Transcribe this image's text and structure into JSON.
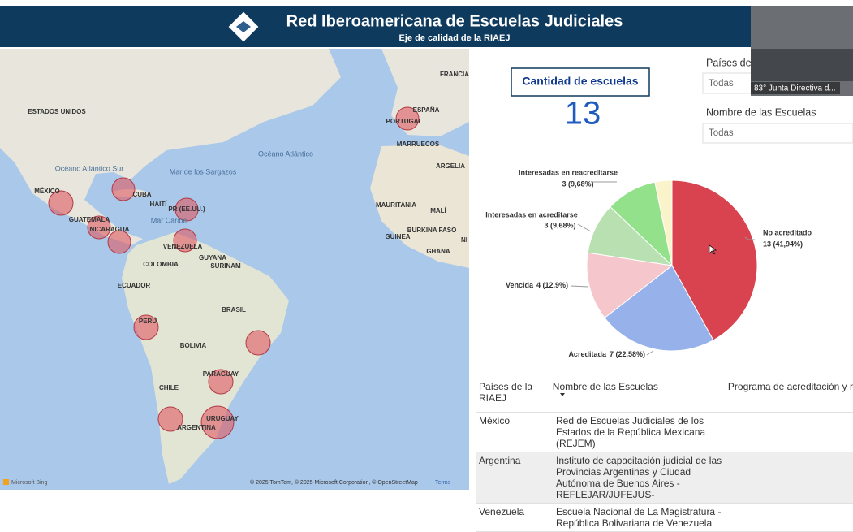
{
  "header": {
    "title": "Red Iberoamericana de Escuelas Judiciales",
    "subtitle": "Eje de calidad de la RIAEJ"
  },
  "map": {
    "labels": [
      "FRANCIA",
      "ESTADOS UNIDOS",
      "ESPAÑA",
      "PORTUGAL",
      "Océano Atlántico Sur",
      "Mar de los Sargazos",
      "Océano Atlántico",
      "MARRUECOS",
      "ARGELIA",
      "MÉXICO",
      "CUBA",
      "HAITÍ",
      "PR (EE.UU.)",
      "Mar Caribe",
      "GUATEMALA",
      "NICARAGUA",
      "VENEZUELA",
      "GUYANA",
      "SURINAM",
      "COLOMBIA",
      "ECUADOR",
      "MAURITANIA",
      "MALÍ",
      "BURKINA FASO",
      "GUINEA",
      "GHANA",
      "NI",
      "BRASIL",
      "PERÚ",
      "BOLIVIA",
      "PARAGUAY",
      "CHILE",
      "URUGUAY",
      "ARGENTINA"
    ],
    "provider": "Microsoft Bing",
    "attribution": "© 2025 TomTom, © 2025 Microsoft Corporation, © OpenStreetMap",
    "terms": "Terms"
  },
  "card": {
    "title": "Cantidad de escuelas",
    "value": 13
  },
  "slicers": [
    {
      "label": "Países de",
      "value": "Todas"
    },
    {
      "label": "Nombre de las Escuelas",
      "value": "Todas"
    }
  ],
  "video": {
    "caption": "83° Junta Directiva d..."
  },
  "chart_data": {
    "type": "pie",
    "categories": [
      "No acreditado",
      "Acreditada",
      "Vencida",
      "Interesadas en acreditarse",
      "Interesadas en reacreditarse",
      null
    ],
    "values": [
      13,
      7,
      4,
      3,
      3,
      1
    ],
    "value_labels": [
      "13 (41,94%)",
      "7 (22,58%)",
      "4 (12,9%)",
      "3 (9,68%)",
      "3 (9,68%)",
      null
    ],
    "colors": [
      "#d9434f",
      "#97b1ea",
      "#f5c7cd",
      "#b9e0b0",
      "#93e28b",
      "#fbf4cb"
    ]
  },
  "table": {
    "columns": [
      "Países de la RIAEJ",
      "Nombre de las Escuelas",
      "Programa de acreditación y r"
    ],
    "rows": [
      [
        "México",
        "Red de Escuelas Judiciales de los Estados de la República Mexicana (REJEM)"
      ],
      [
        "Argentina",
        "Instituto de capacitación judicial de las Provincias Argentinas y Ciudad Autónoma de Buenos Aires -REFLEJAR/JUFEJUS-"
      ],
      [
        "Venezuela",
        "Escuela Nacional de La Magistratura - República Bolivariana de Venezuela"
      ]
    ]
  }
}
